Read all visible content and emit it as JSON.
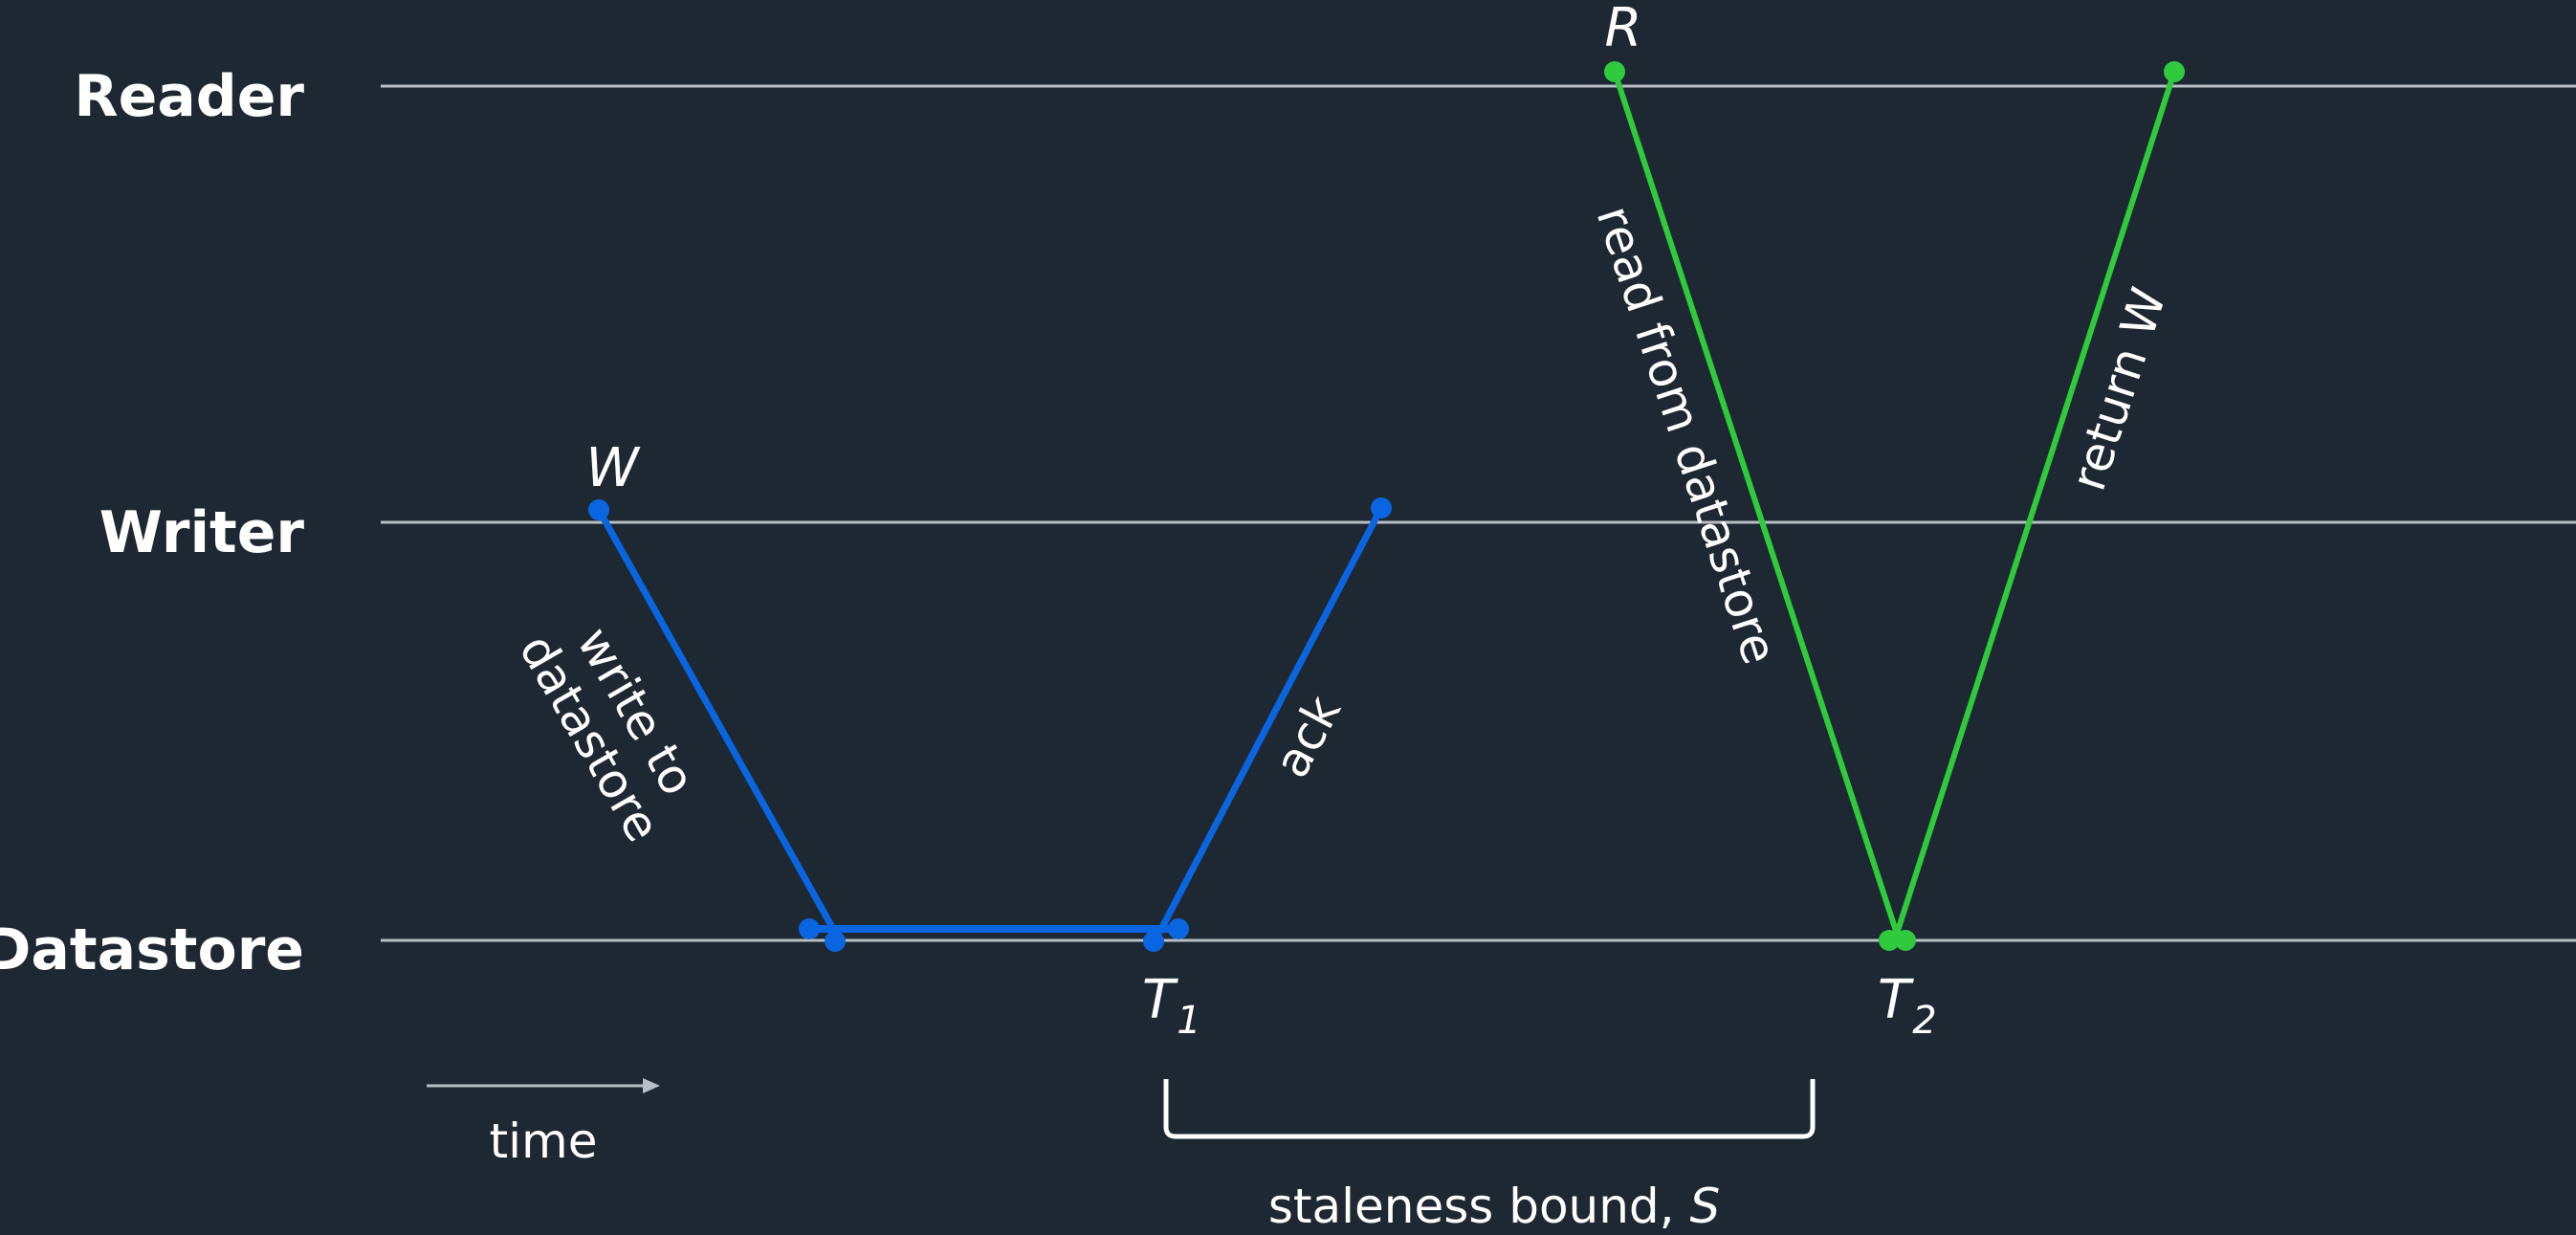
{
  "lanes": {
    "reader": "Reader",
    "writer": "Writer",
    "datastore": "Datastore"
  },
  "points": {
    "w": "W",
    "r": "R",
    "t1": "T",
    "t1_sub": "1",
    "t2": "T",
    "t2_sub": "2"
  },
  "edges": {
    "write_line1": "write to",
    "write_line2": "datastore",
    "ack": "ack",
    "read": "read from datastore",
    "return": "return W"
  },
  "time_label": "time",
  "bound_label": {
    "text": "staleness bound, ",
    "symbol": "S"
  },
  "colors": {
    "background": "#1e2832",
    "writer_path": "#0a66e0",
    "reader_path": "#2fcb3c",
    "lane_line": "#b8bfc6"
  }
}
